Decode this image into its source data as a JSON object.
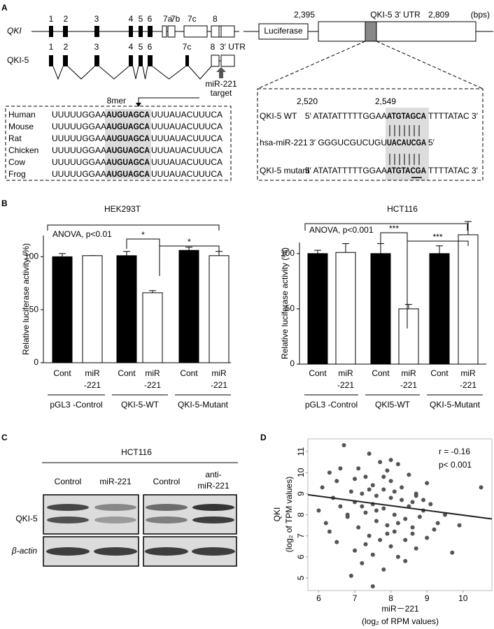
{
  "panel_labels": [
    "A",
    "B",
    "C",
    "D"
  ],
  "gene": {
    "qki_label": "QKI",
    "qki_exons": [
      "1",
      "2",
      "3",
      "4",
      "5",
      "6",
      "7a",
      "7b",
      "7c",
      "8"
    ],
    "qki5_label": "QKI-5",
    "qki5_exons": [
      "1",
      "2",
      "3",
      "4",
      "5",
      "6",
      "7c",
      "8"
    ],
    "utr_label": "3′ UTR",
    "target": [
      "miR-221",
      "target"
    ],
    "mer": "8mer"
  },
  "construct": {
    "luciferase": "Luciferase",
    "start": "2,395",
    "utr": "QKI-5  3′ UTR",
    "end": "2,809",
    "unit": "(bps)"
  },
  "conservation": [
    {
      "species": "Human",
      "seq": [
        "UUUUUGGAA",
        "AUGUAGCA",
        "UUUAUACUUUCA"
      ]
    },
    {
      "species": "Mouse",
      "seq": [
        "UUUUUGGAA",
        "AUGUAGCA",
        "UUUAUACUUUCA"
      ]
    },
    {
      "species": "Rat",
      "seq": [
        "UUUUUGGAA",
        "AUGUAGCA",
        "UUUAUACUUUCA"
      ]
    },
    {
      "species": "Chicken",
      "seq": [
        "UUUUUGGAA",
        "AUGUAGCA",
        "UUUAUACUUUCA"
      ]
    },
    {
      "species": "Cow",
      "seq": [
        "UUUUUGGAA",
        "AUGUAGCA",
        "UUUAUACUUUCA"
      ]
    },
    {
      "species": "Frog",
      "seq": [
        "UUUUUGGAA",
        "AUGUAGCA",
        "UUUAUACUUUCA"
      ]
    }
  ],
  "pairing": {
    "start": "2,520",
    "end": "2,549",
    "rows": [
      {
        "label": "QKI-5 WT",
        "seq": [
          "5′  ATATATTTTTGGAA",
          "ATGTAGCA",
          "TTTTATAC 3′"
        ]
      },
      {
        "label": "hsa-miR-221",
        "seq": [
          "3′ GGGUCGUCUGU",
          "UACAUCGA",
          "5′"
        ]
      },
      {
        "label": "QKI-5 mutant",
        "seq": [
          "5′  ATATATTTTTGGAA",
          "ATGTACGA",
          "TTTTATAC 3′"
        ]
      }
    ]
  },
  "chart_data": [
    {
      "type": "bar",
      "title": "HEK293T",
      "ylabel": "Relative luciferase activity (%)",
      "categories": [
        [
          "Cont"
        ],
        [
          "miR",
          "-221"
        ],
        [
          "Cont"
        ],
        [
          "miR",
          "-221"
        ],
        [
          "Cont"
        ],
        [
          "miR",
          "-221"
        ]
      ],
      "values": [
        100,
        101,
        101,
        66,
        106,
        101
      ],
      "errors": [
        3,
        0,
        4,
        2,
        3,
        4
      ],
      "bar_colors": [
        "#000000",
        "#ffffff",
        "#000000",
        "#ffffff",
        "#000000",
        "#ffffff"
      ],
      "groups": [
        "pGL3 -Control",
        "QKI-5-WT",
        "QKI-5-Mutant"
      ],
      "ylim": [
        0,
        120
      ],
      "yticks": [
        0,
        50,
        100
      ],
      "anova": "ANOVA, p<0.01",
      "significance": [
        "*",
        "*"
      ]
    },
    {
      "type": "bar",
      "title": "HCT116",
      "ylabel": "Relative luciferase activity (%)",
      "categories": [
        [
          "Cont"
        ],
        [
          "miR",
          "-221"
        ],
        [
          "Cont"
        ],
        [
          "miR",
          "-221"
        ],
        [
          "Cont"
        ],
        [
          "miR",
          "-221"
        ]
      ],
      "values": [
        100,
        101,
        100,
        50,
        100,
        117
      ],
      "errors": [
        3,
        8,
        9,
        4,
        7,
        12
      ],
      "bar_colors": [
        "#000000",
        "#ffffff",
        "#000000",
        "#ffffff",
        "#000000",
        "#ffffff"
      ],
      "groups": [
        "pGL3 -Control",
        "QKI5-WT",
        "QKI-5-Mutant"
      ],
      "ylim": [
        0,
        110
      ],
      "yticks": [
        0,
        50,
        100
      ],
      "anova": "ANOVA, p<0.001",
      "significance": [
        "***",
        "***"
      ]
    },
    {
      "type": "scatter",
      "xlabel": "miR－221",
      "xlabel_sub": "(log₂ of RPM values)",
      "ylabel": "QKI",
      "ylabel_sub": "(log₂ of TPM values)",
      "annotations": [
        "r = -0.16",
        "p< 0.001"
      ],
      "color": "#555555",
      "xlim": [
        5.7,
        10.8
      ],
      "ylim": [
        4.4,
        11.6
      ],
      "xticks": [
        6,
        7,
        8,
        9,
        10
      ],
      "yticks": [
        5,
        6,
        7,
        8,
        9,
        10,
        11
      ],
      "x": [
        6.0,
        6.1,
        6.2,
        6.3,
        6.4,
        6.5,
        6.5,
        6.6,
        6.7,
        6.8,
        6.9,
        7.0,
        7.0,
        7.1,
        7.1,
        7.2,
        7.2,
        7.3,
        7.3,
        7.4,
        7.4,
        7.5,
        7.5,
        7.5,
        7.6,
        7.6,
        7.7,
        7.7,
        7.8,
        7.8,
        7.8,
        7.9,
        7.9,
        8.0,
        8.0,
        8.0,
        8.1,
        8.1,
        8.2,
        8.2,
        8.3,
        8.3,
        8.4,
        8.4,
        8.5,
        8.5,
        8.6,
        8.6,
        8.7,
        8.7,
        8.8,
        8.9,
        9.0,
        9.0,
        9.1,
        9.2,
        9.3,
        9.5,
        9.7,
        9.9,
        10.5,
        6.3,
        6.8,
        7.0,
        7.3,
        7.6,
        7.9,
        8.1,
        8.4,
        8.7,
        6.6,
        7.2,
        7.5,
        7.8,
        8.2,
        8.9,
        6.9,
        7.4,
        8.0,
        8.6
      ],
      "y": [
        8.2,
        9.3,
        7.6,
        10.0,
        8.8,
        6.7,
        9.6,
        8.4,
        11.3,
        7.9,
        9.1,
        6.3,
        8.6,
        10.2,
        7.4,
        9.0,
        5.7,
        8.1,
        9.8,
        7.0,
        10.9,
        8.5,
        6.1,
        9.4,
        7.7,
        8.9,
        10.5,
        6.8,
        8.3,
        9.2,
        5.4,
        7.5,
        10.1,
        8.8,
        6.5,
        9.6,
        7.2,
        8.0,
        10.4,
        6.0,
        8.7,
        9.3,
        7.8,
        5.8,
        8.4,
        9.9,
        7.1,
        8.6,
        6.4,
        9.0,
        7.9,
        8.2,
        6.9,
        9.5,
        8.5,
        7.3,
        7.6,
        8.0,
        6.2,
        7.5,
        9.3,
        7.2,
        8.0,
        9.7,
        6.6,
        8.2,
        7.1,
        9.1,
        6.8,
        8.9,
        10.2,
        8.4,
        4.6,
        9.8,
        7.6,
        8.7,
        5.1,
        9.2,
        10.6,
        7.4
      ],
      "fit": {
        "x": [
          5.7,
          10.8
        ],
        "y": [
          8.95,
          7.8
        ]
      }
    }
  ],
  "western": {
    "title": "HCT116",
    "lanes": [
      [
        "Control"
      ],
      [
        "miR-221"
      ],
      [
        "Control"
      ],
      [
        "anti-",
        "miR-221"
      ]
    ],
    "rows": [
      "QKI-5",
      "β-actin"
    ]
  }
}
